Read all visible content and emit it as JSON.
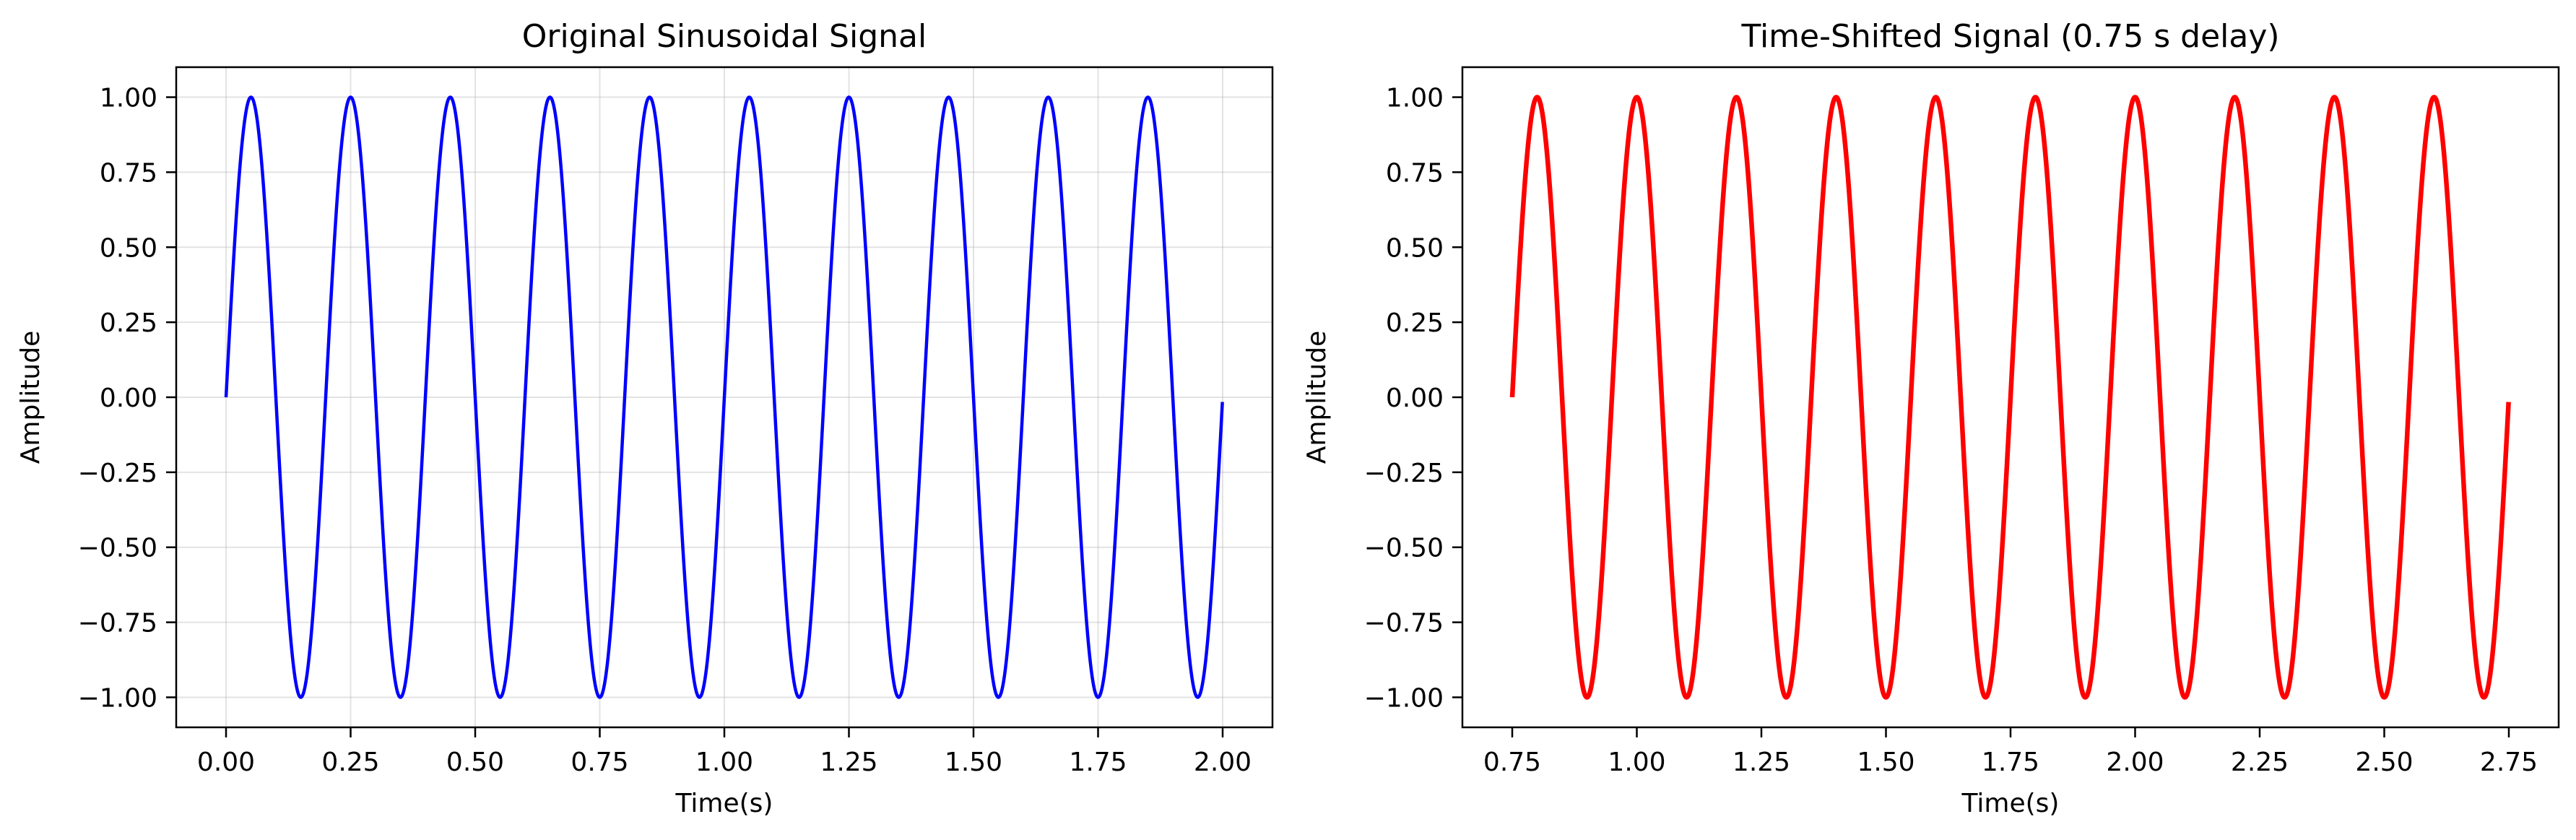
{
  "chart_data": [
    {
      "type": "line",
      "title": "Original Sinusoidal Signal",
      "xlabel": "Time(s)",
      "ylabel": "Amplitude",
      "xlim": [
        -0.1,
        2.1
      ],
      "ylim": [
        -1.1,
        1.1
      ],
      "xticks": [
        "0.00",
        "0.25",
        "0.50",
        "0.75",
        "1.00",
        "1.25",
        "1.50",
        "1.75",
        "2.00"
      ],
      "yticks": [
        "1.00",
        "0.75",
        "0.50",
        "0.25",
        "0.00",
        "−0.25",
        "−0.50",
        "−0.75",
        "−1.00"
      ],
      "grid": true,
      "series": [
        {
          "color": "#0000ff",
          "function": "sine",
          "amplitude": 1,
          "frequency_hz": 5,
          "t_start": 0,
          "t_end": 2,
          "delay_s": 0
        }
      ]
    },
    {
      "type": "line",
      "title": "Time-Shifted Signal (0.75 s delay)",
      "xlabel": "Time(s)",
      "ylabel": "Amplitude",
      "xlim": [
        0.65,
        2.85
      ],
      "ylim": [
        -1.1,
        1.1
      ],
      "xticks": [
        "0.75",
        "1.00",
        "1.25",
        "1.50",
        "1.75",
        "2.00",
        "2.25",
        "2.50",
        "2.75"
      ],
      "yticks": [
        "1.00",
        "0.75",
        "0.50",
        "0.25",
        "0.00",
        "−0.25",
        "−0.50",
        "−0.75",
        "−1.00"
      ],
      "grid": false,
      "series": [
        {
          "color": "#ff0000",
          "function": "sine",
          "amplitude": 1,
          "frequency_hz": 5,
          "t_start": 0.75,
          "t_end": 2.75,
          "delay_s": 0.75
        }
      ]
    }
  ]
}
